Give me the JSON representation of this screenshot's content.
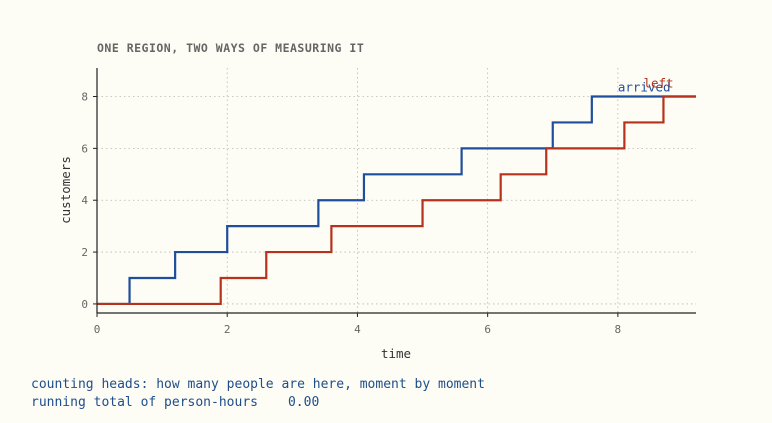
{
  "chart_data": {
    "type": "line",
    "step": true,
    "title": "ONE REGION, TWO WAYS OF MEASURING IT",
    "xlabel": "time",
    "ylabel": "customers",
    "xlim": [
      0,
      9.2
    ],
    "ylim": [
      -0.35,
      9.1
    ],
    "xticks": [
      0,
      2,
      4,
      6,
      8
    ],
    "yticks": [
      0,
      2,
      4,
      6,
      8
    ],
    "grid": true,
    "series": [
      {
        "name": "arrived",
        "color": "#1f4e9c",
        "x": [
          0,
          0.5,
          1.2,
          2.0,
          3.4,
          4.1,
          5.6,
          7.0,
          7.6,
          9.2
        ],
        "y": [
          0,
          1,
          2,
          3,
          4,
          5,
          6,
          7,
          8,
          8
        ]
      },
      {
        "name": "left",
        "color": "#b5321c",
        "x": [
          0,
          1.9,
          2.6,
          3.6,
          5.0,
          6.2,
          6.9,
          8.1,
          8.7,
          9.2
        ],
        "y": [
          0,
          1,
          2,
          3,
          4,
          5,
          6,
          7,
          8,
          8
        ]
      }
    ]
  },
  "caption": {
    "line1": "counting heads: how many people are here, moment by moment",
    "total_label": "running total of person-hours",
    "total_value": "0.00"
  }
}
